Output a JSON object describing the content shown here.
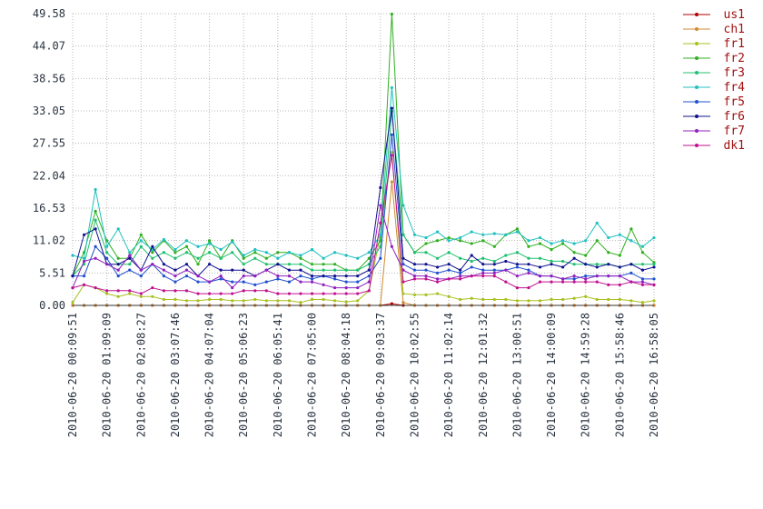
{
  "chart_data": {
    "type": "line",
    "categories": [
      "2010-06-20 00:09:51",
      null,
      null,
      "2010-06-20 01:09:09",
      null,
      null,
      "2010-06-20 02:08:27",
      null,
      null,
      "2010-06-20 03:07:46",
      null,
      null,
      "2010-06-20 04:07:04",
      null,
      null,
      "2010-06-20 05:06:23",
      null,
      null,
      "2010-06-20 06:05:41",
      null,
      null,
      "2010-06-20 07:05:00",
      null,
      null,
      "2010-06-20 08:04:18",
      null,
      null,
      "2010-06-20 09:03:37",
      null,
      null,
      "2010-06-20 10:02:55",
      null,
      null,
      "2010-06-20 11:02:14",
      null,
      null,
      "2010-06-20 12:01:32",
      null,
      null,
      "2010-06-20 13:00:51",
      null,
      null,
      "2010-06-20 14:00:09",
      null,
      null,
      "2010-06-20 14:59:28",
      null,
      null,
      "2010-06-20 15:58:46",
      null,
      null,
      "2010-06-20 16:58:05"
    ],
    "ylim": [
      0,
      49.58
    ],
    "yticks": [
      {
        "value": 0,
        "label": "0.00"
      },
      {
        "value": 5.51,
        "label": "5.51"
      },
      {
        "value": 11.02,
        "label": "11.02"
      },
      {
        "value": 16.53,
        "label": "16.53"
      },
      {
        "value": 22.04,
        "label": "22.04"
      },
      {
        "value": 27.55,
        "label": "27.55"
      },
      {
        "value": 33.05,
        "label": "33.05"
      },
      {
        "value": 38.56,
        "label": "38.56"
      },
      {
        "value": 44.07,
        "label": "44.07"
      },
      {
        "value": 49.58,
        "label": "49.58"
      }
    ],
    "grid": true,
    "legend": "right",
    "series": [
      {
        "name": "us1",
        "color": "#b00000",
        "values": [
          0,
          0,
          0,
          0,
          0,
          0,
          0,
          0,
          0,
          0,
          0,
          0,
          0,
          0,
          0,
          0,
          0,
          0,
          0,
          0,
          0,
          0,
          0,
          0,
          0,
          0,
          0,
          0,
          0.3,
          0,
          0,
          0,
          0,
          0,
          0,
          0,
          0,
          0,
          0,
          0,
          0,
          0,
          0,
          0,
          0,
          0,
          0,
          0,
          0,
          0,
          0,
          0
        ]
      },
      {
        "name": "ch1",
        "color": "#d08a30",
        "values": [
          0,
          0,
          0,
          0,
          0,
          0,
          0,
          0,
          0,
          0,
          0,
          0,
          0,
          0,
          0,
          0,
          0,
          0,
          0,
          0,
          0,
          0,
          0,
          0,
          0,
          0,
          0,
          0,
          21,
          0.5,
          0,
          0,
          0,
          0,
          0,
          0,
          0,
          0,
          0,
          0,
          0,
          0,
          0,
          0,
          0,
          0,
          0,
          0,
          0,
          0,
          0,
          0
        ]
      },
      {
        "name": "fr1",
        "color": "#a8c020",
        "values": [
          0.5,
          3.5,
          3,
          2,
          1.5,
          2,
          1.5,
          1.5,
          1,
          1,
          0.8,
          0.8,
          1,
          1,
          0.8,
          0.8,
          1,
          0.8,
          0.8,
          0.8,
          0.5,
          1,
          1,
          0.8,
          0.6,
          0.8,
          2.5,
          12,
          26,
          2,
          1.8,
          1.8,
          2,
          1.5,
          1,
          1.2,
          1,
          1,
          1,
          0.8,
          0.8,
          0.8,
          1,
          1,
          1.2,
          1.5,
          1,
          1,
          1,
          0.8,
          0.5,
          0.8
        ]
      },
      {
        "name": "fr2",
        "color": "#30b020",
        "values": [
          5,
          9,
          16,
          11,
          8,
          8,
          12,
          9,
          11,
          9,
          10,
          7,
          11,
          8,
          11,
          8,
          9,
          8,
          9,
          9,
          8,
          7,
          7,
          7,
          6,
          6,
          8,
          11,
          49.5,
          12,
          9,
          10.5,
          11,
          11.5,
          11,
          10.5,
          11,
          10,
          12,
          13,
          10,
          10.5,
          9.5,
          10.5,
          9,
          8.5,
          11,
          9,
          8.5,
          13,
          9,
          7.3
        ]
      },
      {
        "name": "fr3",
        "color": "#20c070",
        "values": [
          5,
          7,
          14.5,
          9,
          7,
          7,
          10,
          8,
          9,
          8,
          9,
          8,
          9,
          8,
          9,
          7,
          8,
          7,
          7,
          7,
          7,
          6,
          6,
          6,
          6,
          6,
          7,
          10,
          33,
          12,
          9,
          9,
          8,
          9,
          8,
          7.5,
          8,
          7.5,
          8.5,
          9,
          8,
          8,
          7.5,
          7.5,
          7,
          7,
          7,
          7,
          6.5,
          7,
          7,
          7
        ]
      },
      {
        "name": "fr4",
        "color": "#20c0c0",
        "values": [
          8.5,
          8,
          19.7,
          10,
          13,
          9,
          11,
          9.5,
          11.2,
          9.5,
          11,
          10,
          10.5,
          9.5,
          10.8,
          8.5,
          9.5,
          9,
          8,
          9,
          8.5,
          9.5,
          8,
          9,
          8.5,
          8,
          9,
          12,
          37,
          17,
          12,
          11.5,
          12.5,
          11,
          11.5,
          12.5,
          12,
          12.2,
          12,
          12.5,
          11,
          11.5,
          10.5,
          11,
          10.5,
          11,
          14,
          11.5,
          12,
          11,
          10,
          11.5
        ]
      },
      {
        "name": "fr5",
        "color": "#2050d0",
        "values": [
          5,
          5,
          10,
          8,
          5,
          6,
          5,
          7,
          5,
          4,
          5,
          4,
          4,
          4.5,
          4,
          4,
          3.5,
          4,
          4.5,
          4,
          5,
          4.5,
          5,
          4.5,
          4,
          4,
          5,
          8,
          29,
          7,
          6,
          6,
          5.5,
          6,
          5.5,
          6.5,
          6,
          6,
          6,
          6.5,
          6,
          5,
          5,
          4.5,
          4.5,
          5,
          5,
          5,
          5,
          5.5,
          4.5,
          4.5
        ]
      },
      {
        "name": "fr6",
        "color": "#10108f",
        "values": [
          5,
          12,
          13,
          7,
          7,
          8,
          6,
          10,
          7,
          6,
          7,
          5,
          7,
          6,
          6,
          6,
          5,
          6,
          7,
          6,
          6,
          5,
          5,
          5,
          5,
          5,
          6,
          20,
          33.5,
          8,
          7,
          7,
          6.5,
          7,
          6,
          8.5,
          7,
          7,
          7.5,
          7,
          7,
          6.5,
          7,
          6.5,
          8,
          7,
          6.5,
          7,
          6.5,
          7,
          6,
          6.5
        ]
      },
      {
        "name": "fr7",
        "color": "#9020c0",
        "values": [
          3,
          7.5,
          8,
          7,
          6,
          8.5,
          6,
          7,
          6,
          5,
          6,
          5,
          4,
          5,
          3,
          5,
          5,
          6,
          5,
          5,
          4,
          4,
          3.5,
          3,
          3,
          3,
          4,
          17,
          10,
          6,
          5,
          5,
          4.5,
          4.5,
          5,
          5,
          5.5,
          5.5,
          6,
          5,
          5.5,
          5,
          5,
          4.5,
          5,
          4.5,
          5,
          5,
          5,
          4,
          4,
          3.5
        ]
      },
      {
        "name": "dk1",
        "color": "#c0108f",
        "values": [
          3,
          3.5,
          3,
          2.5,
          2.5,
          2.5,
          2,
          3,
          2.5,
          2.5,
          2.5,
          2,
          2,
          2,
          2,
          2.5,
          2.5,
          2.5,
          2,
          2,
          2,
          2,
          2,
          2,
          2,
          2,
          2.5,
          14,
          25.5,
          4,
          4.5,
          4.5,
          4,
          4.5,
          4.5,
          5,
          5,
          5,
          4,
          3,
          3,
          4,
          4,
          4,
          4,
          4,
          4,
          3.5,
          3.5,
          4,
          3.5,
          3.5
        ]
      }
    ]
  }
}
